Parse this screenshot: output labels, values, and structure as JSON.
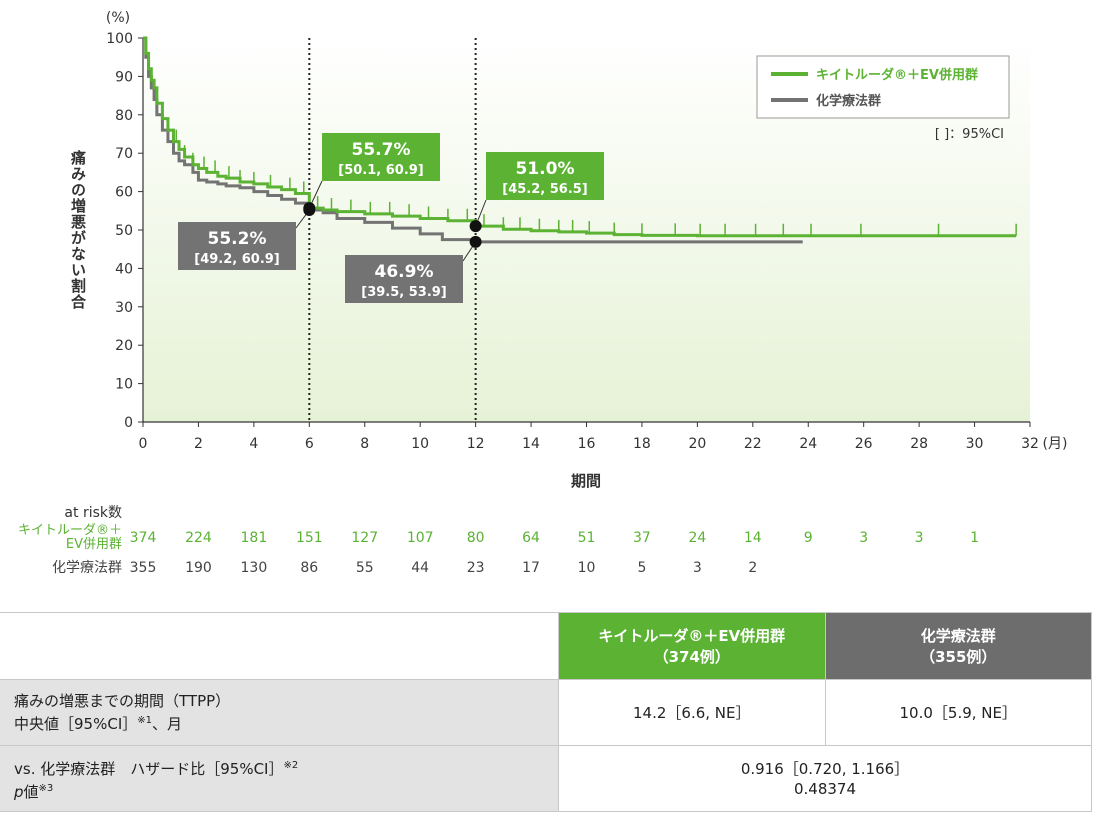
{
  "chart_data": {
    "type": "line",
    "ylabel": "痛みの増悪がない割合",
    "y_unit": "(%)",
    "xlabel": "期間",
    "x_unit": "(月)",
    "xlim": [
      0,
      32
    ],
    "ylim": [
      0,
      100
    ],
    "x_ticks": [
      0,
      2,
      4,
      6,
      8,
      10,
      12,
      14,
      16,
      18,
      20,
      22,
      24,
      26,
      28,
      30,
      32
    ],
    "y_ticks": [
      0,
      10,
      20,
      30,
      40,
      50,
      60,
      70,
      80,
      90,
      100
    ],
    "grid": false,
    "legend_placement": "top-right",
    "reference_lines_x": [
      6,
      12
    ],
    "ci_note": "[ ]：95%CI",
    "series": [
      {
        "name": "キイトルーダ®＋EV併用群",
        "color": "#5bb233",
        "x": [
          0,
          0.1,
          0.2,
          0.3,
          0.4,
          0.5,
          0.7,
          0.9,
          1.1,
          1.3,
          1.5,
          1.8,
          2.0,
          2.3,
          2.7,
          3.0,
          3.5,
          4.0,
          4.5,
          5.0,
          5.5,
          6.0,
          6.5,
          7.0,
          8.0,
          9.0,
          10.0,
          11.0,
          12.0,
          13.0,
          14.0,
          15.0,
          16.0,
          17.0,
          18.0,
          20.0,
          22.0,
          24.0,
          26.0,
          28.0,
          30.0,
          31.5
        ],
        "y": [
          100,
          96,
          92,
          89,
          87,
          83,
          79,
          76,
          73,
          71,
          69,
          67,
          66,
          65,
          64,
          63.5,
          62.5,
          62,
          61.2,
          60.5,
          59.5,
          55.7,
          55.2,
          54.8,
          54.2,
          53.6,
          53,
          52.4,
          51,
          50.2,
          49.8,
          49.5,
          49.2,
          48.8,
          48.6,
          48.5,
          48.5,
          48.5,
          48.5,
          48.5,
          48.5,
          48.5
        ],
        "censor_x": [
          0.3,
          0.5,
          0.7,
          0.9,
          1.2,
          1.5,
          1.8,
          2.2,
          2.6,
          3.1,
          3.5,
          4.0,
          4.6,
          5.3,
          5.8,
          6.3,
          6.8,
          7.5,
          8.2,
          8.9,
          9.6,
          10.3,
          11.0,
          11.7,
          12.3,
          13.0,
          13.6,
          14.3,
          15.0,
          15.5,
          16.1,
          17.0,
          18.0,
          19.2,
          20.1,
          21.0,
          22.1,
          23.1,
          24.1,
          25.9,
          28.7,
          31.5
        ],
        "annotations": [
          {
            "x": 6,
            "value": "55.7%",
            "ci": "[50.1, 60.9]"
          },
          {
            "x": 12,
            "value": "51.0%",
            "ci": "[45.2, 56.5]"
          }
        ]
      },
      {
        "name": "化学療法群",
        "color": "#737373",
        "x": [
          0,
          0.1,
          0.2,
          0.3,
          0.4,
          0.5,
          0.7,
          0.9,
          1.1,
          1.3,
          1.5,
          1.8,
          2.0,
          2.3,
          2.7,
          3.0,
          3.5,
          4.0,
          4.5,
          5.0,
          5.5,
          6.0,
          6.5,
          7.0,
          8.0,
          9.0,
          10.0,
          10.8,
          12.0,
          13.0,
          14.0,
          16.0,
          18.0,
          20.0,
          22.0,
          23.8
        ],
        "y": [
          100,
          95,
          90,
          87,
          84,
          80,
          76,
          73,
          70,
          68,
          67,
          65,
          63,
          62.5,
          62,
          61.5,
          61,
          60,
          59,
          58,
          57,
          55.2,
          54.5,
          53,
          52,
          50.5,
          49,
          47.5,
          46.9,
          46.9,
          46.9,
          46.9,
          46.9,
          46.9,
          46.9,
          46.9
        ],
        "censor_x": [],
        "annotations": [
          {
            "x": 6,
            "value": "55.2%",
            "ci": "[49.2, 60.9]"
          },
          {
            "x": 12,
            "value": "46.9%",
            "ci": "[39.5, 53.9]"
          }
        ]
      }
    ]
  },
  "risk_table": {
    "title": "at risk数",
    "times": [
      0,
      2,
      4,
      6,
      8,
      10,
      12,
      14,
      16,
      18,
      20,
      22,
      24,
      26,
      28,
      30
    ],
    "groups": [
      {
        "label_line1": "キイトルーダ®＋",
        "label_line2": "EV併用群",
        "color": "#5bb233",
        "values": [
          "374",
          "224",
          "181",
          "151",
          "127",
          "107",
          "80",
          "64",
          "51",
          "37",
          "24",
          "14",
          "9",
          "3",
          "3",
          "1"
        ]
      },
      {
        "label_line1": "化学療法群",
        "label_line2": "",
        "color": "#444444",
        "values": [
          "355",
          "190",
          "130",
          "86",
          "55",
          "44",
          "23",
          "17",
          "10",
          "5",
          "3",
          "2"
        ]
      }
    ]
  },
  "summary": {
    "col_kt_line1": "キイトルーダ®＋EV併用群",
    "col_kt_line2": "（374例）",
    "col_chemo_line1": "化学療法群",
    "col_chemo_line2": "（355例）",
    "row1_label_line1": "痛みの増悪までの期間（TTPP）",
    "row1_label_line2": "中央値［95%CI］",
    "row1_note": "※1",
    "row1_label_suffix": "、月",
    "row1_kt": "14.2［6.6, NE］",
    "row1_chemo": "10.0［5.9, NE］",
    "row2_label_line1": "vs. 化学療法群　ハザード比［95%CI］",
    "row2_note": "※2",
    "row2_p": "p",
    "row2_p_rest": "値",
    "row2_p_note": "※3",
    "row2_hr": "0.916［0.720, 1.166］",
    "row2_pvalue": "0.48374"
  }
}
